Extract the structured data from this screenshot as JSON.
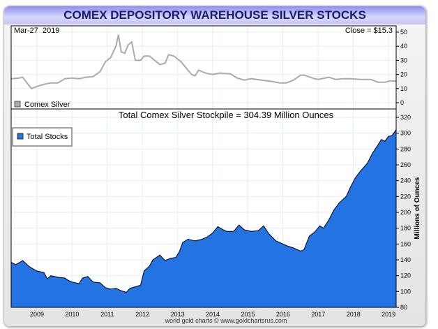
{
  "title": "COMEX DEPOSITORY WAREHOUSE SILVER STOCKS",
  "footer": "world gold charts © www.goldchartsrus.com",
  "colors": {
    "silver_line": "#aaaaaa",
    "stocks_fill": "#2374e2",
    "title_text": "#1a1a70"
  },
  "chart_data": [
    {
      "type": "line",
      "name": "Comex Silver",
      "date_label": "Mar-27  2019",
      "close_label": "Close = $15.3",
      "legend": "Comex Silver",
      "legend_position": "bottom-left",
      "ylim": [
        0,
        50
      ],
      "yticks": [
        "50",
        "40",
        "30",
        "20",
        "10",
        "0"
      ],
      "xlim": [
        2008.27,
        2019.22
      ],
      "x": [
        2008.27,
        2008.5,
        2008.6,
        2008.75,
        2008.85,
        2009.0,
        2009.2,
        2009.4,
        2009.6,
        2009.8,
        2010.0,
        2010.2,
        2010.4,
        2010.6,
        2010.8,
        2010.95,
        2011.1,
        2011.25,
        2011.32,
        2011.4,
        2011.5,
        2011.6,
        2011.7,
        2011.8,
        2011.95,
        2012.05,
        2012.2,
        2012.4,
        2012.5,
        2012.65,
        2012.75,
        2012.9,
        2013.0,
        2013.1,
        2013.3,
        2013.4,
        2013.5,
        2013.6,
        2013.8,
        2014.0,
        2014.2,
        2014.5,
        2014.7,
        2014.9,
        2015.1,
        2015.4,
        2015.7,
        2015.9,
        2016.1,
        2016.3,
        2016.5,
        2016.6,
        2016.9,
        2017.0,
        2017.3,
        2017.5,
        2017.7,
        2017.9,
        2018.2,
        2018.5,
        2018.7,
        2018.9,
        2019.05,
        2019.22
      ],
      "y": [
        17,
        17.5,
        18,
        13,
        10,
        11.5,
        13,
        14,
        14,
        17,
        17.5,
        17,
        18,
        18.5,
        22,
        29,
        32,
        40,
        48,
        36,
        35,
        41,
        43,
        30,
        30,
        33,
        33,
        29,
        27,
        28,
        34,
        33,
        31,
        29,
        23,
        20,
        19,
        23,
        21,
        20,
        21,
        20.5,
        17.5,
        16,
        17,
        16,
        15,
        14,
        14,
        16,
        19.5,
        19.5,
        17,
        16.5,
        18,
        16.5,
        17,
        17,
        16.5,
        16.5,
        14.5,
        14.5,
        15.5,
        15.3
      ]
    },
    {
      "type": "area",
      "name": "Total Stocks",
      "title": "Total Comex Silver Stockpile = 304.39 Million Ounces",
      "legend": "Total Stocks",
      "legend_position": "top-left",
      "ylabel": "Millions of Ounces",
      "ylim": [
        80,
        320
      ],
      "yticks": [
        "320",
        "300",
        "280",
        "260",
        "240",
        "220",
        "200",
        "180",
        "160",
        "140",
        "120",
        "100",
        "80"
      ],
      "xticks": [
        "2009",
        "2010",
        "2011",
        "2012",
        "2013",
        "2014",
        "2015",
        "2016",
        "2017",
        "2018",
        "2019"
      ],
      "xlim": [
        2008.27,
        2019.22
      ],
      "x": [
        2008.27,
        2008.4,
        2008.6,
        2008.8,
        2009.0,
        2009.2,
        2009.3,
        2009.4,
        2009.6,
        2009.8,
        2009.9,
        2010.0,
        2010.2,
        2010.3,
        2010.45,
        2010.6,
        2010.8,
        2010.95,
        2011.1,
        2011.25,
        2011.4,
        2011.55,
        2011.65,
        2011.8,
        2011.95,
        2012.05,
        2012.2,
        2012.3,
        2012.5,
        2012.65,
        2012.8,
        2012.95,
        2013.05,
        2013.15,
        2013.3,
        2013.5,
        2013.7,
        2013.85,
        2014.0,
        2014.15,
        2014.3,
        2014.4,
        2014.6,
        2014.75,
        2014.9,
        2015.1,
        2015.3,
        2015.45,
        2015.6,
        2015.8,
        2016.0,
        2016.1,
        2016.3,
        2016.5,
        2016.6,
        2016.75,
        2016.9,
        2017.05,
        2017.15,
        2017.3,
        2017.45,
        2017.6,
        2017.8,
        2017.9,
        2018.05,
        2018.2,
        2018.4,
        2018.55,
        2018.7,
        2018.8,
        2018.9,
        2019.0,
        2019.1,
        2019.22
      ],
      "y": [
        137,
        134,
        139,
        131,
        126,
        124,
        116,
        120,
        118,
        117,
        114,
        112,
        110,
        117,
        119,
        112,
        111,
        105,
        103,
        104,
        101,
        99,
        104,
        106,
        108,
        126,
        132,
        140,
        146,
        139,
        142,
        143,
        150,
        162,
        166,
        164,
        166,
        169,
        174,
        182,
        178,
        176,
        176,
        184,
        178,
        176,
        177,
        183,
        173,
        164,
        160,
        158,
        155,
        151,
        153,
        170,
        175,
        183,
        180,
        190,
        203,
        212,
        220,
        230,
        243,
        252,
        262,
        275,
        285,
        292,
        290,
        296,
        297,
        304.39
      ]
    }
  ]
}
